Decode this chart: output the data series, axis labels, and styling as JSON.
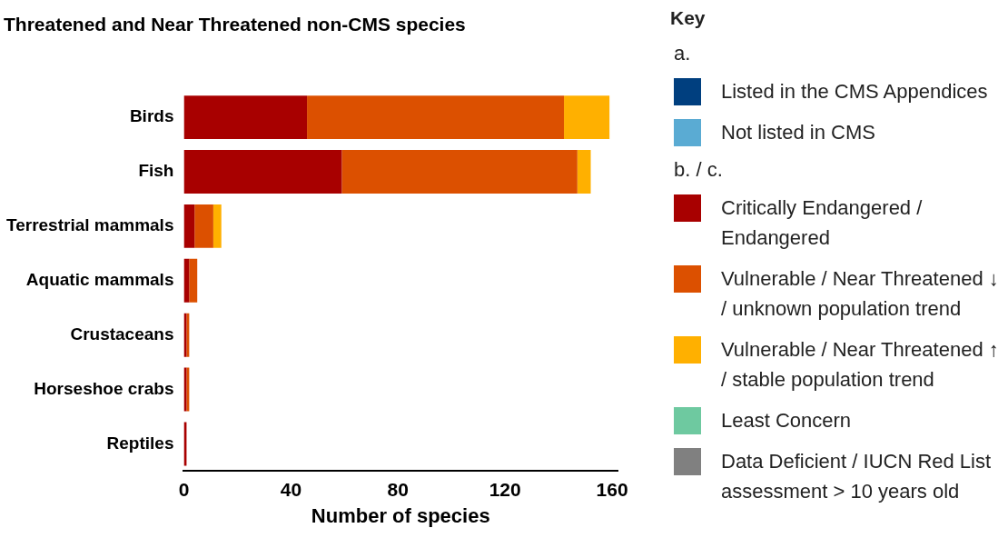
{
  "chart_data": {
    "type": "bar",
    "orientation": "horizontal",
    "stacked": true,
    "title": "Threatened and Near Threatened non-CMS species",
    "xlabel": "Number of species",
    "categories": [
      "Birds",
      "Fish",
      "Terrestrial mammals",
      "Aquatic mammals",
      "Crustaceans",
      "Horseshoe crabs",
      "Reptiles"
    ],
    "xlim": [
      0,
      162
    ],
    "xticks": [
      0,
      40,
      80,
      120,
      160
    ],
    "grid": false,
    "legend": "right",
    "legend_title": "Key",
    "annotations": [
      "a.",
      "b. / c."
    ],
    "series": [
      {
        "name": "Listed in the CMS Appendices",
        "color": "#003f7f",
        "values": [
          null,
          null,
          null,
          null,
          null,
          null,
          null
        ]
      },
      {
        "name": "Not listed in CMS",
        "color": "#5aabd3",
        "values": [
          null,
          null,
          null,
          null,
          null,
          null,
          null
        ]
      },
      {
        "name": "Critically Endangered / Endangered",
        "color": "#a80000",
        "values": [
          46,
          59,
          4,
          2,
          1,
          1,
          1
        ]
      },
      {
        "name": "Vulnerable / Near Threatened ↓ / unknown population trend",
        "color": "#dc5000",
        "values": [
          96,
          88,
          7,
          3,
          1,
          1,
          null
        ]
      },
      {
        "name": "Vulnerable / Near Threatened ↑ / stable population trend",
        "color": "#ffb000",
        "values": [
          17,
          5,
          3,
          null,
          null,
          null,
          null
        ]
      },
      {
        "name": "Least Concern",
        "color": "#6ec9a0",
        "values": [
          null,
          null,
          null,
          null,
          null,
          null,
          null
        ]
      },
      {
        "name": "Data Deficient / IUCN Red List assessment > 10 years old",
        "color": "#808080",
        "values": [
          null,
          null,
          null,
          null,
          null,
          null,
          null
        ]
      }
    ]
  }
}
